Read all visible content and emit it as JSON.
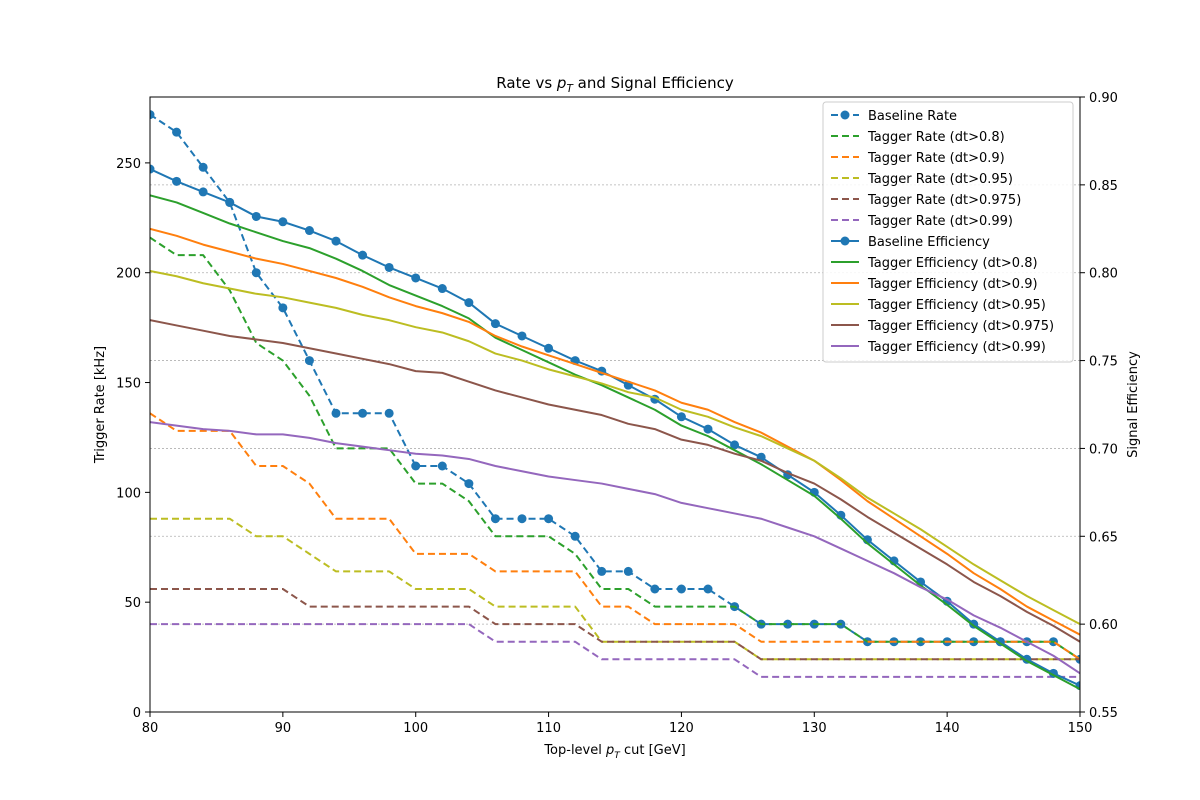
{
  "chart_data": {
    "type": "line",
    "title_parts": [
      "Rate vs ",
      "p",
      "T",
      " and Signal Efficiency"
    ],
    "xlabel_parts": [
      "Top-level ",
      "p",
      "T",
      " cut [GeV]"
    ],
    "ylabel_left": "Trigger Rate [kHz]",
    "ylabel_right": "Signal Efficiency",
    "xlim": [
      80,
      150
    ],
    "ylim_left": [
      0,
      280
    ],
    "ylim_right": [
      0.55,
      0.9
    ],
    "xticks": [
      80,
      90,
      100,
      110,
      120,
      130,
      140,
      150
    ],
    "yticks_left": [
      0,
      50,
      100,
      150,
      200,
      250
    ],
    "yticks_right": [
      "0.55",
      "0.60",
      "0.65",
      "0.70",
      "0.75",
      "0.80",
      "0.85",
      "0.90"
    ],
    "grid": "right-axis horizontal, dotted",
    "legend_location": "upper right",
    "x": [
      80,
      82,
      84,
      86,
      88,
      90,
      92,
      94,
      96,
      98,
      100,
      102,
      104,
      106,
      108,
      110,
      112,
      114,
      116,
      118,
      120,
      122,
      124,
      126,
      128,
      130,
      132,
      134,
      136,
      138,
      140,
      142,
      144,
      146,
      148,
      150
    ],
    "series": [
      {
        "name": "Baseline Rate",
        "axis": "left",
        "color": "#1f77b4",
        "style": "dashed",
        "marker": true,
        "values": [
          272,
          264,
          248,
          232,
          200,
          184,
          160,
          136,
          136,
          136,
          112,
          112,
          104,
          88,
          88,
          88,
          80,
          64,
          64,
          56,
          56,
          56,
          48,
          40,
          40,
          40,
          40,
          32,
          32,
          32,
          32,
          32,
          32,
          32,
          32,
          24
        ]
      },
      {
        "name": "Tagger Rate (dt>0.8)",
        "axis": "left",
        "color": "#2ca02c",
        "style": "dashed",
        "marker": false,
        "values": [
          216,
          208,
          208,
          192,
          168,
          160,
          144,
          120,
          120,
          120,
          104,
          104,
          96,
          80,
          80,
          80,
          72,
          56,
          56,
          48,
          48,
          48,
          48,
          40,
          40,
          40,
          40,
          32,
          32,
          32,
          32,
          32,
          32,
          32,
          32,
          24
        ]
      },
      {
        "name": "Tagger Rate (dt>0.9)",
        "axis": "left",
        "color": "#ff7f0e",
        "style": "dashed",
        "marker": false,
        "values": [
          136,
          128,
          128,
          128,
          112,
          112,
          104,
          88,
          88,
          88,
          72,
          72,
          72,
          64,
          64,
          64,
          64,
          48,
          48,
          40,
          40,
          40,
          40,
          32,
          32,
          32,
          32,
          32,
          32,
          32,
          32,
          32,
          32,
          32,
          32,
          24
        ]
      },
      {
        "name": "Tagger Rate (dt>0.95)",
        "axis": "left",
        "color": "#bcbd22",
        "style": "dashed",
        "marker": false,
        "values": [
          88,
          88,
          88,
          88,
          80,
          80,
          72,
          64,
          64,
          64,
          56,
          56,
          56,
          48,
          48,
          48,
          48,
          32,
          32,
          32,
          32,
          32,
          32,
          24,
          24,
          24,
          24,
          24,
          24,
          24,
          24,
          24,
          24,
          24,
          24,
          24
        ]
      },
      {
        "name": "Tagger Rate (dt>0.975)",
        "axis": "left",
        "color": "#8c564b",
        "style": "dashed",
        "marker": false,
        "values": [
          56,
          56,
          56,
          56,
          56,
          56,
          48,
          48,
          48,
          48,
          48,
          48,
          48,
          40,
          40,
          40,
          40,
          32,
          32,
          32,
          32,
          32,
          32,
          24,
          24,
          24,
          24,
          24,
          24,
          24,
          24,
          24,
          24,
          24,
          24,
          24
        ]
      },
      {
        "name": "Tagger Rate (dt>0.99)",
        "axis": "left",
        "color": "#9467bd",
        "style": "dashed",
        "marker": false,
        "values": [
          40,
          40,
          40,
          40,
          40,
          40,
          40,
          40,
          40,
          40,
          40,
          40,
          40,
          32,
          32,
          32,
          32,
          24,
          24,
          24,
          24,
          24,
          24,
          16,
          16,
          16,
          16,
          16,
          16,
          16,
          16,
          16,
          16,
          16,
          16,
          16
        ]
      },
      {
        "name": "Baseline Efficiency",
        "axis": "right",
        "color": "#1f77b4",
        "style": "solid",
        "marker": true,
        "values": [
          0.859,
          0.852,
          0.846,
          0.84,
          0.832,
          0.829,
          0.824,
          0.818,
          0.81,
          0.803,
          0.797,
          0.791,
          0.783,
          0.771,
          0.764,
          0.757,
          0.75,
          0.744,
          0.736,
          0.728,
          0.718,
          0.711,
          0.702,
          0.695,
          0.685,
          0.675,
          0.662,
          0.648,
          0.636,
          0.624,
          0.613,
          0.6,
          0.59,
          0.58,
          0.572,
          0.565
        ]
      },
      {
        "name": "Tagger Efficiency (dt>0.8)",
        "axis": "right",
        "color": "#2ca02c",
        "style": "solid",
        "marker": false,
        "values": [
          0.844,
          0.84,
          0.834,
          0.828,
          0.823,
          0.818,
          0.814,
          0.808,
          0.801,
          0.793,
          0.787,
          0.781,
          0.774,
          0.763,
          0.756,
          0.749,
          0.742,
          0.736,
          0.729,
          0.722,
          0.713,
          0.707,
          0.699,
          0.691,
          0.682,
          0.673,
          0.66,
          0.646,
          0.634,
          0.622,
          0.611,
          0.599,
          0.589,
          0.579,
          0.571,
          0.563
        ]
      },
      {
        "name": "Tagger Efficiency (dt>0.9)",
        "axis": "right",
        "color": "#ff7f0e",
        "style": "solid",
        "marker": false,
        "values": [
          0.825,
          0.821,
          0.816,
          0.812,
          0.808,
          0.805,
          0.801,
          0.797,
          0.792,
          0.786,
          0.781,
          0.777,
          0.772,
          0.764,
          0.758,
          0.753,
          0.748,
          0.743,
          0.738,
          0.733,
          0.726,
          0.722,
          0.715,
          0.709,
          0.701,
          0.693,
          0.682,
          0.67,
          0.66,
          0.65,
          0.64,
          0.629,
          0.62,
          0.61,
          0.602,
          0.594
        ]
      },
      {
        "name": "Tagger Efficiency (dt>0.95)",
        "axis": "right",
        "color": "#bcbd22",
        "style": "solid",
        "marker": false,
        "values": [
          0.801,
          0.798,
          0.794,
          0.791,
          0.788,
          0.786,
          0.783,
          0.78,
          0.776,
          0.773,
          0.769,
          0.766,
          0.761,
          0.754,
          0.75,
          0.745,
          0.741,
          0.737,
          0.732,
          0.729,
          0.722,
          0.718,
          0.712,
          0.707,
          0.7,
          0.693,
          0.683,
          0.672,
          0.663,
          0.654,
          0.644,
          0.634,
          0.625,
          0.616,
          0.608,
          0.6
        ]
      },
      {
        "name": "Tagger Efficiency (dt>0.975)",
        "axis": "right",
        "color": "#8c564b",
        "style": "solid",
        "marker": false,
        "values": [
          0.773,
          0.77,
          0.767,
          0.764,
          0.762,
          0.76,
          0.757,
          0.754,
          0.751,
          0.748,
          0.744,
          0.743,
          0.738,
          0.733,
          0.729,
          0.725,
          0.722,
          0.719,
          0.714,
          0.711,
          0.705,
          0.702,
          0.697,
          0.693,
          0.686,
          0.68,
          0.671,
          0.661,
          0.652,
          0.643,
          0.634,
          0.624,
          0.616,
          0.607,
          0.599,
          0.59
        ]
      },
      {
        "name": "Tagger Efficiency (dt>0.99)",
        "axis": "right",
        "color": "#9467bd",
        "style": "solid",
        "marker": false,
        "values": [
          0.715,
          0.713,
          0.711,
          0.71,
          0.708,
          0.708,
          0.706,
          0.703,
          0.701,
          0.699,
          0.697,
          0.696,
          0.694,
          0.69,
          0.687,
          0.684,
          0.682,
          0.68,
          0.677,
          0.674,
          0.669,
          0.666,
          0.663,
          0.66,
          0.655,
          0.65,
          0.643,
          0.636,
          0.629,
          0.621,
          0.614,
          0.605,
          0.598,
          0.59,
          0.582,
          0.572
        ]
      }
    ]
  }
}
